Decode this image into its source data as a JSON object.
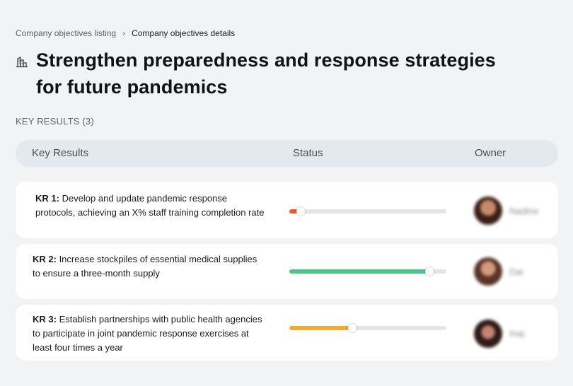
{
  "breadcrumb": {
    "parent": "Company objectives listing",
    "separator": "›",
    "current": "Company objectives details"
  },
  "objective": {
    "icon": "building-icon",
    "title": "Strengthen preparedness and response strategies for future pandemics"
  },
  "key_results_label": "KEY RESULTS (3)",
  "table": {
    "columns": [
      "Key Results",
      "Status",
      "Owner"
    ]
  },
  "key_results": [
    {
      "id": "KR 1:",
      "text": " Develop and update pandemic response protocols, achieving an X% staff training completion rate",
      "progress": 0.07,
      "progress_color": "#f1592a",
      "owner": "Nadine"
    },
    {
      "id": "KR 2:",
      "text": " Increase stockpiles of essential medical supplies to ensure a three-month supply",
      "progress": 0.89,
      "progress_color": "#4cc486",
      "owner": "Dai"
    },
    {
      "id": "KR 3:",
      "text": " Establish partnerships with public health agencies to participate in joint pandemic response exercises at least four times a year",
      "progress": 0.4,
      "progress_color": "#f7a834",
      "owner": "Inaj"
    }
  ]
}
